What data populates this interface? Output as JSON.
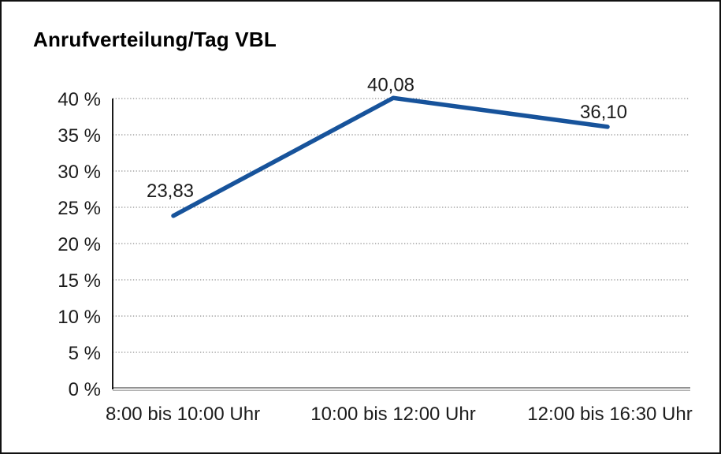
{
  "frame": {
    "background_color": "#ffffff",
    "border_color": "#111111"
  },
  "chart_data": {
    "type": "line",
    "title": "Anrufverteilung/Tag VBL",
    "categories": [
      "8:00 bis 10:00 Uhr",
      "10:00 bis 12:00 Uhr",
      "12:00 bis 16:30 Uhr"
    ],
    "values": [
      23.83,
      40.08,
      36.1
    ],
    "data_labels": [
      "23,83",
      "40,08",
      "36,10"
    ],
    "xlabel": "",
    "ylabel": "",
    "ylim": [
      0,
      40
    ],
    "ytick_step": 5,
    "ytick_labels": [
      "0 %",
      "5 %",
      "10 %",
      "15 %",
      "20 %",
      "25 %",
      "30 %",
      "35 %",
      "40 %"
    ],
    "grid": "horizontal-dotted",
    "legend": "none",
    "line_color": "#17539b",
    "gridline_color": "#707070",
    "axis_color": "#000000",
    "baseline_color": "#6f6f6f",
    "text_color": "#1c1c1c"
  }
}
